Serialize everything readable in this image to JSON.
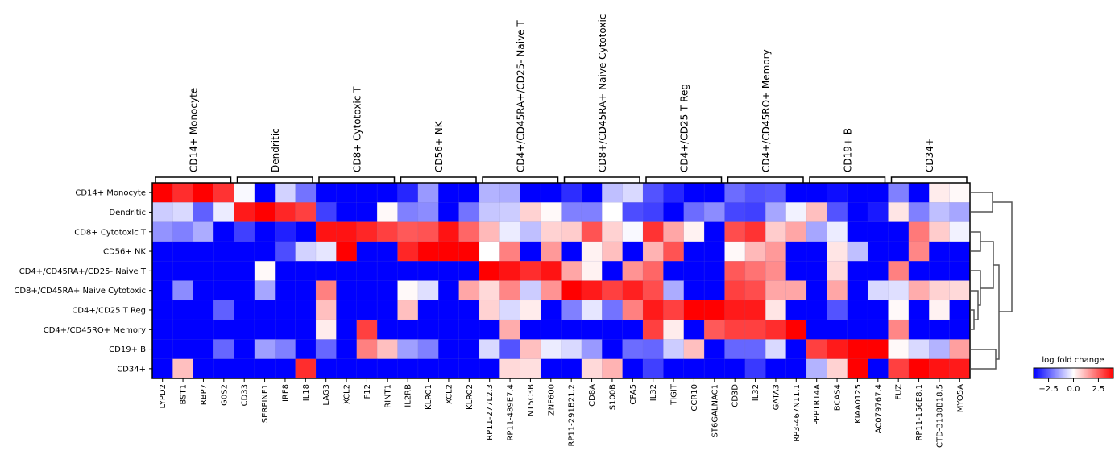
{
  "chart_data": {
    "type": "heatmap",
    "title": "",
    "xlabel": "",
    "ylabel": "",
    "rows": [
      "CD14+ Monocyte",
      "Dendritic",
      "CD8+ Cytotoxic T",
      "CD56+ NK",
      "CD4+/CD45RA+/CD25- Naive T",
      "CD8+/CD45RA+ Naive Cytotoxic",
      "CD4+/CD25 T Reg",
      "CD4+/CD45RO+ Memory",
      "CD19+ B",
      "CD34+"
    ],
    "columns": [
      "LYPD2",
      "BST1",
      "RBP7",
      "G0S2",
      "CD33",
      "SERPINF1",
      "IRF8",
      "IL18",
      "LAG3",
      "XCL2",
      "F12",
      "RINT1",
      "IL2RB",
      "KLRC1",
      "XCL2",
      "KLRC2",
      "RP11-277L2.3",
      "RP11-489E7.4",
      "NT5C3B",
      "ZNF600",
      "RP11-291B21.2",
      "CD8A",
      "S100B",
      "CPA5",
      "IL32",
      "TIGIT",
      "CCR10",
      "ST6GALNAC1",
      "CD3D",
      "IL32",
      "GATA3",
      "RP3-467N11.1",
      "PPP1R14A",
      "BCAS4",
      "KIAA0125",
      "AC079767.4",
      "FUZ",
      "RP11-156E8.1",
      "CTD-3138B18.5",
      "MYO5A"
    ],
    "column_groups": [
      "CD14+ Monocyte",
      "Dendritic",
      "CD8+ Cytotoxic T",
      "CD56+ NK",
      "CD4+/CD45RA+/CD25- Naive T",
      "CD8+/CD45RA+ Naive Cytotoxic",
      "CD4+/CD25 T Reg",
      "CD4+/CD45RO+ Memory",
      "CD19+ B",
      "CD34+"
    ],
    "values": [
      [
        4,
        3.3,
        4,
        3.2,
        -0.1,
        -4,
        -0.7,
        -2.2,
        -4,
        -4,
        -4,
        -4,
        -3.4,
        -1.6,
        -4,
        -4,
        -1.2,
        -1.3,
        -4,
        -4,
        -3.3,
        -4,
        -1,
        -0.6,
        -2.7,
        -3.4,
        -4,
        -4,
        -2.3,
        -2.7,
        -2.6,
        -4,
        -4,
        -3.8,
        -4,
        -4,
        -2,
        -4,
        0.3,
        0.1
      ],
      [
        -0.8,
        -0.6,
        -2.5,
        -0.3,
        3.6,
        4,
        3.4,
        3,
        -3,
        -4,
        -4,
        0.1,
        -2,
        -1.8,
        -4,
        -2.2,
        -0.9,
        -0.8,
        0.7,
        0.1,
        -2,
        -2,
        0,
        -2.8,
        -3,
        -4,
        -2.3,
        -1.8,
        -2.9,
        -3,
        -1.4,
        -0.2,
        1,
        -2.7,
        -4,
        -3.6,
        0.4,
        -2,
        -1,
        -1.4
      ],
      [
        -1.7,
        -2,
        -1.3,
        -4,
        -3,
        -4,
        -3.5,
        -4,
        3.7,
        3.7,
        3.4,
        3,
        2.6,
        2.7,
        3.7,
        2.4,
        1.1,
        -0.3,
        -1,
        0.7,
        0.8,
        2.7,
        0.7,
        -0.1,
        3.2,
        1.4,
        0.2,
        -4,
        2.8,
        3.2,
        0.8,
        1.4,
        -1.4,
        -0.3,
        -4,
        -4,
        -4,
        2.1,
        0.8,
        -0.2
      ],
      [
        -4,
        -4,
        -4,
        -4,
        -4,
        -4,
        -2.8,
        -0.7,
        -0.4,
        4,
        -4,
        -4,
        3.4,
        4,
        4,
        4,
        0,
        2,
        -4,
        1.6,
        -4,
        0.2,
        1,
        -4,
        1.2,
        2.7,
        -4,
        -4,
        0.1,
        1.1,
        1.6,
        -4,
        -4,
        0.4,
        -1,
        -4,
        -4,
        1.9,
        -4,
        -4
      ],
      [
        -4,
        -4,
        -4,
        -4,
        -4,
        0.1,
        -4,
        -4,
        -4,
        -4,
        -4,
        -4,
        -4,
        -4,
        -4,
        -4,
        4,
        3.7,
        3.3,
        3.7,
        1.4,
        0.2,
        -4,
        1.7,
        2.4,
        -4,
        -4,
        -4,
        2.6,
        2.2,
        1.8,
        -4,
        -4,
        0.6,
        -4,
        -4,
        2,
        -4,
        -4,
        -4
      ],
      [
        -4,
        -1.8,
        -4,
        -4,
        -4,
        -1.4,
        -4,
        -4,
        2,
        -4,
        -4,
        -4,
        0.1,
        -0.5,
        -4,
        1.4,
        0.6,
        1.9,
        -0.8,
        1.7,
        4,
        3.6,
        3,
        3.5,
        2.8,
        -1.3,
        -4,
        -4,
        3,
        2.8,
        1.4,
        1.4,
        -4,
        1.4,
        -4,
        -0.6,
        -0.5,
        1.3,
        0.7,
        0.6
      ],
      [
        -4,
        -4,
        -4,
        -2.5,
        -4,
        -4,
        -4,
        -4,
        1,
        -4,
        -4,
        -4,
        1,
        -4,
        -4,
        -4,
        0.7,
        -0.6,
        0.3,
        -4,
        -2,
        -0.4,
        -2.2,
        2,
        3.6,
        3,
        4,
        4,
        3.6,
        3.6,
        0.4,
        -4,
        -4,
        -2.7,
        -4,
        -4,
        0.1,
        -4,
        0.2,
        -4
      ],
      [
        -4,
        -4,
        -4,
        -4,
        -4,
        -4,
        -4,
        -4,
        0.3,
        -4,
        3,
        -4,
        -4,
        -4,
        -4,
        -4,
        -4,
        1.3,
        -4,
        -4,
        -4,
        -4,
        -4,
        -4,
        3,
        0.3,
        -4,
        2.6,
        3,
        3,
        3.3,
        4,
        -4,
        -4,
        -4,
        -4,
        1.9,
        -4,
        -4,
        -4
      ],
      [
        -4,
        -4,
        -4,
        -2.4,
        -4,
        -1.5,
        -2,
        -4,
        -2.4,
        -4,
        2,
        1,
        -1.5,
        -2,
        -4,
        -4,
        -0.6,
        -2.7,
        1,
        -0.3,
        -0.6,
        -1.6,
        -4,
        -2.3,
        -2.4,
        -0.8,
        1,
        -4,
        -2.4,
        -2.4,
        -0.6,
        -4,
        3,
        3.6,
        4,
        4,
        0.1,
        -0.6,
        -1.2,
        1.5
      ],
      [
        -4,
        1,
        -4,
        -4,
        -4,
        -4,
        -4,
        3.3,
        -4,
        -4,
        -4,
        -4,
        -4,
        -4,
        -4,
        -4,
        -4,
        0.6,
        0.5,
        -4,
        -4,
        0.6,
        1.2,
        -4,
        -3,
        -4,
        -4,
        -4,
        -4,
        -3.1,
        -4,
        -4,
        -1.2,
        0.7,
        4,
        -4,
        3,
        4,
        3.7,
        3.6
      ]
    ],
    "colormap": "bwr",
    "vmin": -4,
    "vmax": 4,
    "colors": {
      "low": "#0000ff",
      "mid": "#ffffff",
      "high": "#ff0000"
    },
    "colorbar": {
      "title": "log fold change",
      "ticks": [
        -2.5,
        0.0,
        2.5
      ],
      "tick_labels": [
        "−2.5",
        "0.0",
        "2.5"
      ]
    },
    "dendrogram": "rows",
    "legend_placement": "bottom-right",
    "grid": false
  }
}
